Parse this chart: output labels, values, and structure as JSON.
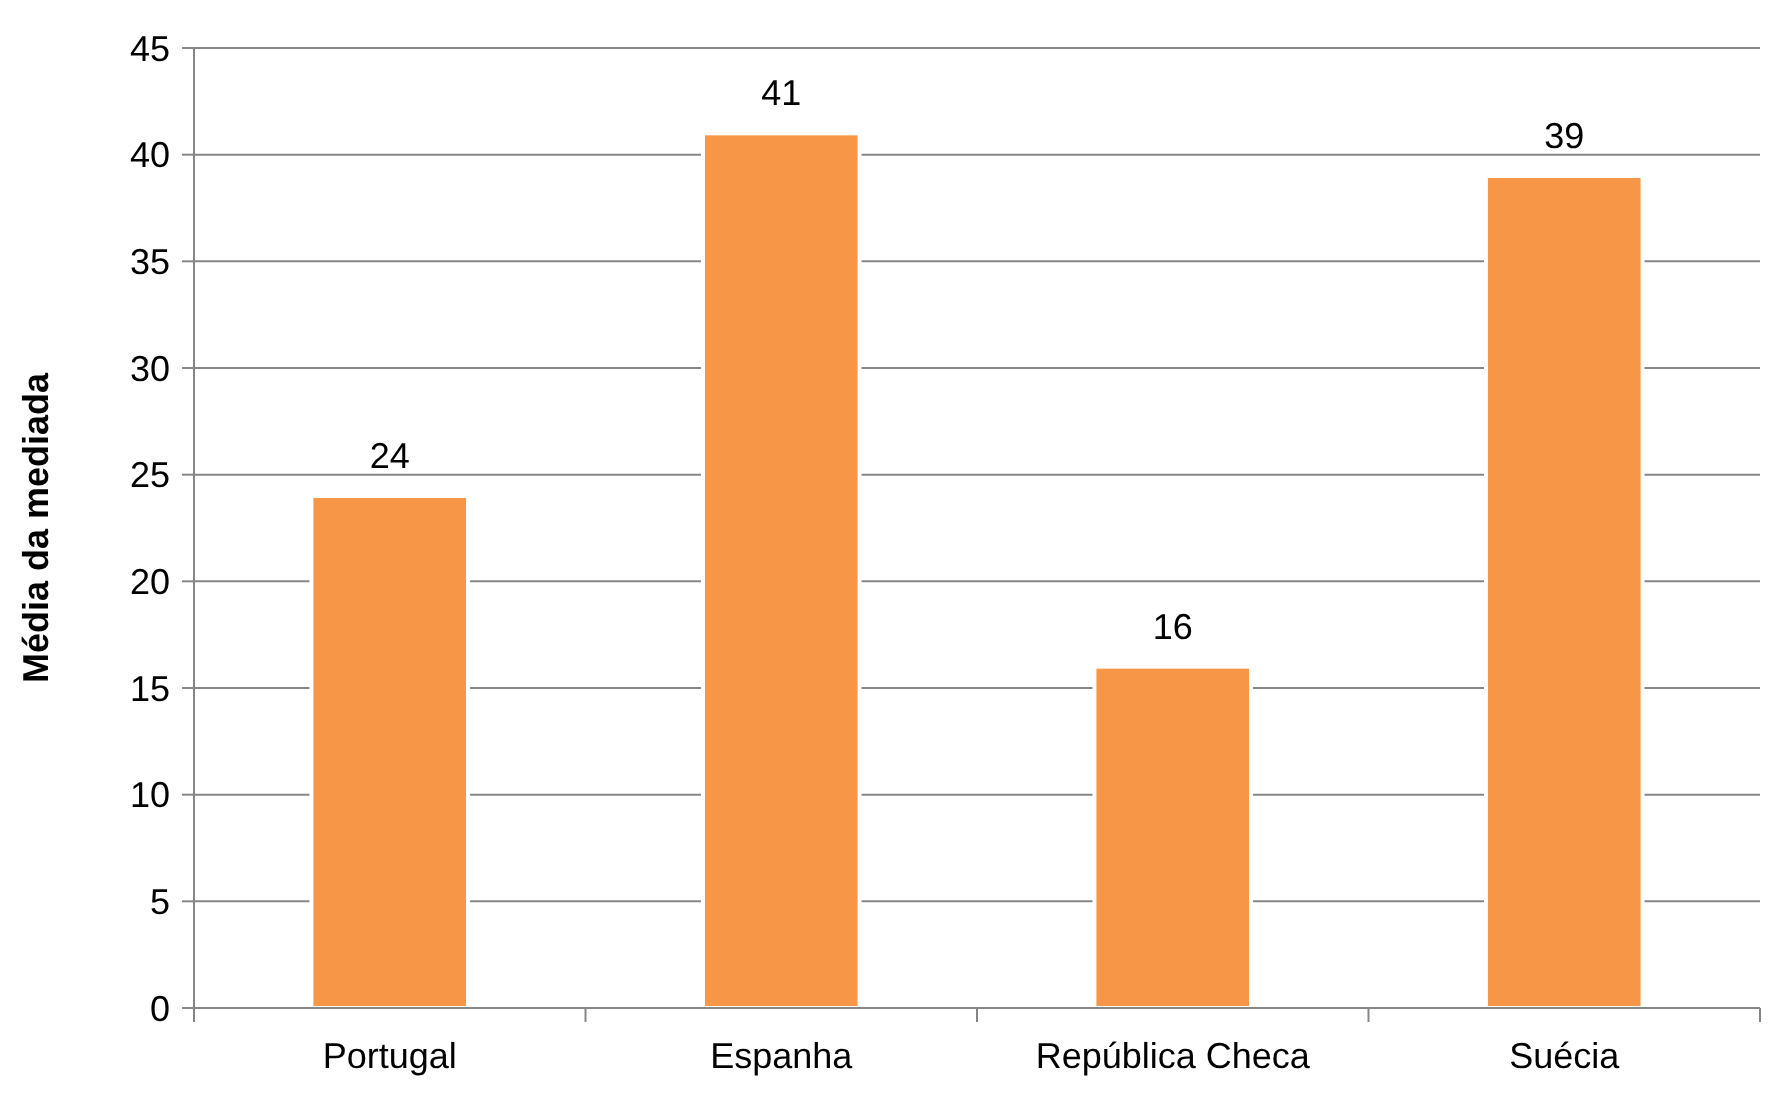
{
  "chart_data": {
    "type": "bar",
    "ylabel": "Média da mediada",
    "categories": [
      "Portugal",
      "Espanha",
      "República Checa",
      "Suécia"
    ],
    "values": [
      24,
      41,
      16,
      39
    ],
    "color": "#f79646",
    "ylim": [
      0,
      45
    ],
    "yticks": [
      0,
      5,
      10,
      15,
      20,
      25,
      30,
      35,
      40,
      45
    ],
    "grid": "y",
    "data_labels": true
  }
}
